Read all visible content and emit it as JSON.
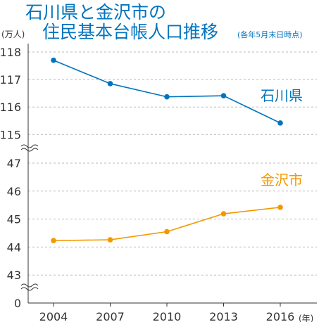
{
  "chart_data": {
    "type": "line",
    "title_line1": "石川県と金沢市の",
    "title_line2": "住民基本台帳人口推移",
    "title_note": "(各年5月末日時点)",
    "y_unit": "(万人)",
    "x_unit": "(年)",
    "categories": [
      "2004",
      "2007",
      "2010",
      "2013",
      "2016"
    ],
    "axis_upper": {
      "ticks": [
        "118",
        "117",
        "116",
        "115"
      ],
      "ylim": [
        115,
        118
      ]
    },
    "axis_middle": {
      "ticks": [
        "47",
        "46",
        "45",
        "44",
        "43"
      ],
      "ylim": [
        43,
        47
      ]
    },
    "axis_zero": "0",
    "grid": true,
    "series": [
      {
        "name": "石川県",
        "color": "#0074bf",
        "values": [
          117.7,
          116.85,
          116.37,
          116.41,
          115.42
        ]
      },
      {
        "name": "金沢市",
        "color": "#f39800",
        "values": [
          44.23,
          44.26,
          44.55,
          45.19,
          45.42
        ]
      }
    ]
  }
}
